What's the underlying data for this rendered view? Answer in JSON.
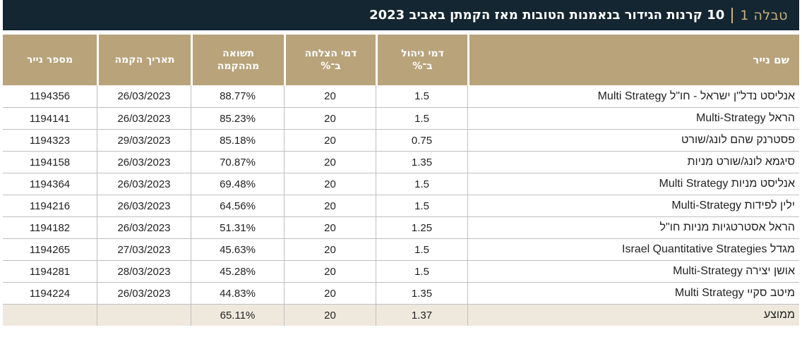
{
  "title": {
    "label": "טבלה 1",
    "text": "10 קרנות הגידור בנאמנות הטובות מאז הקמתן באביב 2023"
  },
  "headers": {
    "name": "שם נייר",
    "mgmt_fee_line1": "דמי ניהול",
    "mgmt_fee_line2": "ב־%",
    "success_fee_line1": "דמי הצלחה",
    "success_fee_line2": "ב־%",
    "return_line1": "תשואה",
    "return_line2": "מההקמה",
    "date": "תאריך הקמה",
    "number": "מספר נייר"
  },
  "rows": [
    {
      "name": "אנליסט נדל\"ן ישראל - חו\"ל Multi Strategy",
      "mgmt": "1.5",
      "success": "20",
      "ret": "88.77%",
      "date": "26/03/2023",
      "number": "1194356"
    },
    {
      "name": "הראל Multi-Strategy",
      "mgmt": "1.5",
      "success": "20",
      "ret": "85.23%",
      "date": "26/03/2023",
      "number": "1194141"
    },
    {
      "name": "פסטרנק שהם לונג/שורט",
      "mgmt": "0.75",
      "success": "20",
      "ret": "85.18%",
      "date": "29/03/2023",
      "number": "1194323"
    },
    {
      "name": "סיגמא לונג/שורט מניות",
      "mgmt": "1.35",
      "success": "20",
      "ret": "70.87%",
      "date": "26/03/2023",
      "number": "1194158"
    },
    {
      "name": "אנליסט מניות Multi Strategy",
      "mgmt": "1.5",
      "success": "20",
      "ret": "69.48%",
      "date": "26/03/2023",
      "number": "1194364"
    },
    {
      "name": "ילין לפידות Multi-Strategy",
      "mgmt": "1.5",
      "success": "20",
      "ret": "64.56%",
      "date": "26/03/2023",
      "number": "1194216"
    },
    {
      "name": "הראל אסטרטגיות מניות חו\"ל",
      "mgmt": "1.25",
      "success": "20",
      "ret": "51.31%",
      "date": "26/03/2023",
      "number": "1194182"
    },
    {
      "name": "מגדל Israel Quantitative Strategies",
      "mgmt": "1.5",
      "success": "20",
      "ret": "45.63%",
      "date": "27/03/2023",
      "number": "1194265"
    },
    {
      "name": "אושן יצירה Multi-Strategy",
      "mgmt": "1.5",
      "success": "20",
      "ret": "45.28%",
      "date": "28/03/2023",
      "number": "1194281"
    },
    {
      "name": "מיטב סקיי Multi Strategy",
      "mgmt": "1.35",
      "success": "20",
      "ret": "44.83%",
      "date": "26/03/2023",
      "number": "1194224"
    }
  ],
  "average": {
    "name": "ממוצע",
    "mgmt": "1.37",
    "success": "20",
    "ret": "65.11%",
    "date": "",
    "number": ""
  },
  "colors": {
    "title_bg": "#132631",
    "accent_gold": "#cbb27b",
    "header_bg": "#b8a37b",
    "average_bg": "#efe9dd"
  }
}
